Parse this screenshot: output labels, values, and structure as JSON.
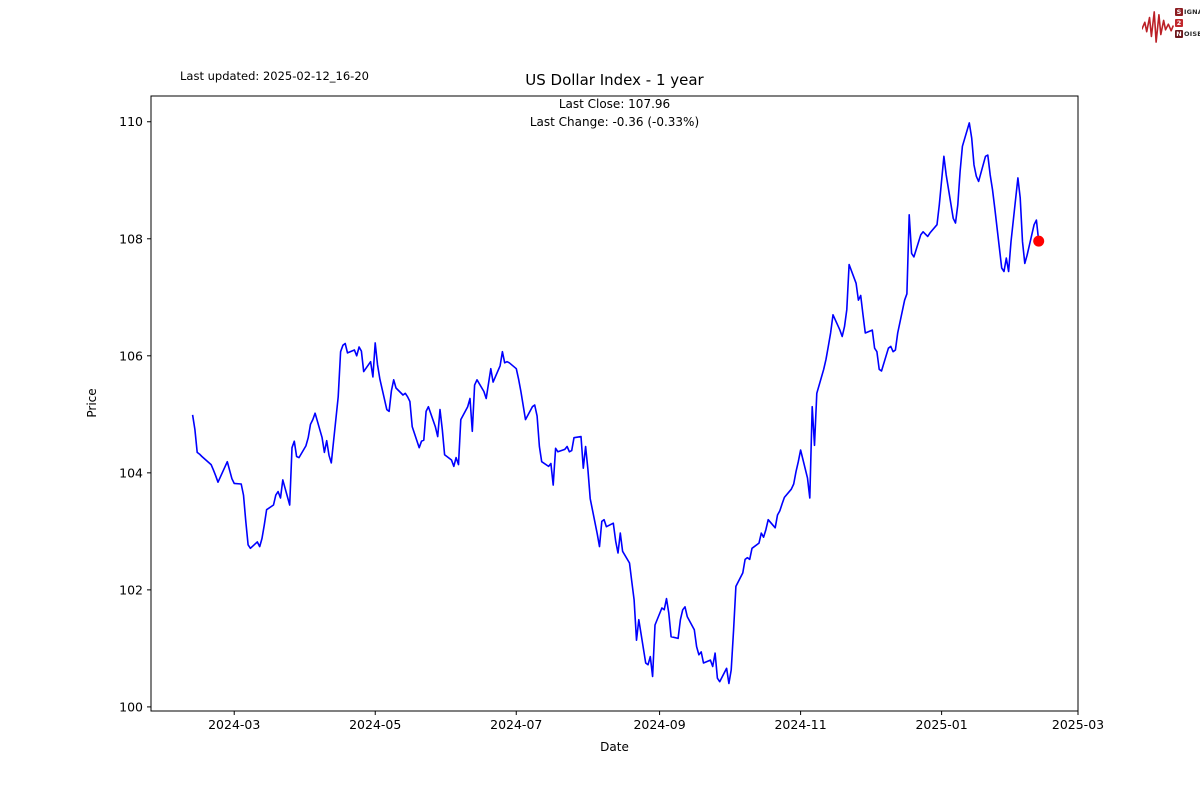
{
  "header": {
    "last_updated": "Last updated: 2025-02-12_16-20"
  },
  "logo": {
    "line1_initial": "S",
    "line1_rest": "IGNAL",
    "line2": "2",
    "line3_initial": "N",
    "line3_rest": "OISE",
    "box_colors": [
      "#8c1d22",
      "#c1272d",
      "#6d1a1e"
    ],
    "waveform_color": "#bb2026"
  },
  "chart_data": {
    "type": "line",
    "title": "US Dollar Index - 1 year",
    "subtitle_line1": "Last Close: 107.96",
    "subtitle_line2": "Last Change: -0.36 (-0.33%)",
    "xlabel": "Date",
    "ylabel": "Price",
    "last_close": 107.96,
    "last_change": -0.36,
    "last_change_pct": "-0.33%",
    "line_color": "#0000ff",
    "marker_color": "#ff0000",
    "grid": false,
    "legend": "none",
    "xlim": [
      "2024-01-25",
      "2025-03-01"
    ],
    "ylim": [
      99.93,
      110.44
    ],
    "y_ticks": [
      100,
      102,
      104,
      106,
      108,
      110
    ],
    "x_ticks": [
      {
        "date": "2024-03-01",
        "label": "2024-03"
      },
      {
        "date": "2024-05-01",
        "label": "2024-05"
      },
      {
        "date": "2024-07-01",
        "label": "2024-07"
      },
      {
        "date": "2024-09-01",
        "label": "2024-09"
      },
      {
        "date": "2024-11-01",
        "label": "2024-11"
      },
      {
        "date": "2025-01-01",
        "label": "2025-01"
      },
      {
        "date": "2025-03-01",
        "label": "2025-03"
      }
    ],
    "points": [
      [
        "2024-02-12",
        104.99
      ],
      [
        "2024-02-13",
        104.74
      ],
      [
        "2024-02-14",
        104.35
      ],
      [
        "2024-02-15",
        104.32
      ],
      [
        "2024-02-16",
        104.28
      ],
      [
        "2024-02-20",
        104.14
      ],
      [
        "2024-02-21",
        104.05
      ],
      [
        "2024-02-22",
        103.95
      ],
      [
        "2024-02-23",
        103.84
      ],
      [
        "2024-02-27",
        104.19
      ],
      [
        "2024-02-29",
        103.9
      ],
      [
        "2024-03-01",
        103.82
      ],
      [
        "2024-03-04",
        103.81
      ],
      [
        "2024-03-05",
        103.62
      ],
      [
        "2024-03-06",
        103.17
      ],
      [
        "2024-03-07",
        102.77
      ],
      [
        "2024-03-08",
        102.71
      ],
      [
        "2024-03-11",
        102.82
      ],
      [
        "2024-03-12",
        102.74
      ],
      [
        "2024-03-13",
        102.88
      ],
      [
        "2024-03-14",
        103.11
      ],
      [
        "2024-03-15",
        103.37
      ],
      [
        "2024-03-18",
        103.45
      ],
      [
        "2024-03-19",
        103.62
      ],
      [
        "2024-03-20",
        103.68
      ],
      [
        "2024-03-21",
        103.57
      ],
      [
        "2024-03-22",
        103.88
      ],
      [
        "2024-03-25",
        103.45
      ],
      [
        "2024-03-26",
        104.43
      ],
      [
        "2024-03-27",
        104.54
      ],
      [
        "2024-03-28",
        104.28
      ],
      [
        "2024-03-29",
        104.26
      ],
      [
        "2024-04-01",
        104.46
      ],
      [
        "2024-04-02",
        104.6
      ],
      [
        "2024-04-03",
        104.83
      ],
      [
        "2024-04-04",
        104.91
      ],
      [
        "2024-04-05",
        105.02
      ],
      [
        "2024-04-08",
        104.6
      ],
      [
        "2024-04-09",
        104.35
      ],
      [
        "2024-04-10",
        104.55
      ],
      [
        "2024-04-11",
        104.3
      ],
      [
        "2024-04-12",
        104.17
      ],
      [
        "2024-04-15",
        105.3
      ],
      [
        "2024-04-16",
        106.07
      ],
      [
        "2024-04-17",
        106.18
      ],
      [
        "2024-04-18",
        106.21
      ],
      [
        "2024-04-19",
        106.05
      ],
      [
        "2024-04-22",
        106.1
      ],
      [
        "2024-04-23",
        106.0
      ],
      [
        "2024-04-24",
        106.15
      ],
      [
        "2024-04-25",
        106.08
      ],
      [
        "2024-04-26",
        105.73
      ],
      [
        "2024-04-29",
        105.9
      ],
      [
        "2024-04-30",
        105.64
      ],
      [
        "2024-05-01",
        106.22
      ],
      [
        "2024-05-02",
        105.85
      ],
      [
        "2024-05-03",
        105.6
      ],
      [
        "2024-05-06",
        105.08
      ],
      [
        "2024-05-07",
        105.05
      ],
      [
        "2024-05-08",
        105.4
      ],
      [
        "2024-05-09",
        105.59
      ],
      [
        "2024-05-10",
        105.45
      ],
      [
        "2024-05-13",
        105.33
      ],
      [
        "2024-05-14",
        105.36
      ],
      [
        "2024-05-15",
        105.3
      ],
      [
        "2024-05-16",
        105.22
      ],
      [
        "2024-05-17",
        104.79
      ],
      [
        "2024-05-20",
        104.43
      ],
      [
        "2024-05-21",
        104.54
      ],
      [
        "2024-05-22",
        104.56
      ],
      [
        "2024-05-23",
        105.05
      ],
      [
        "2024-05-24",
        105.13
      ],
      [
        "2024-05-27",
        104.79
      ],
      [
        "2024-05-28",
        104.62
      ],
      [
        "2024-05-29",
        105.08
      ],
      [
        "2024-05-30",
        104.74
      ],
      [
        "2024-05-31",
        104.31
      ],
      [
        "2024-06-03",
        104.22
      ],
      [
        "2024-06-04",
        104.11
      ],
      [
        "2024-06-05",
        104.26
      ],
      [
        "2024-06-06",
        104.14
      ],
      [
        "2024-06-07",
        104.91
      ],
      [
        "2024-06-10",
        105.13
      ],
      [
        "2024-06-11",
        105.27
      ],
      [
        "2024-06-12",
        104.71
      ],
      [
        "2024-06-13",
        105.5
      ],
      [
        "2024-06-14",
        105.59
      ],
      [
        "2024-06-17",
        105.39
      ],
      [
        "2024-06-18",
        105.27
      ],
      [
        "2024-06-20",
        105.78
      ],
      [
        "2024-06-21",
        105.55
      ],
      [
        "2024-06-24",
        105.83
      ],
      [
        "2024-06-25",
        106.07
      ],
      [
        "2024-06-26",
        105.88
      ],
      [
        "2024-06-27",
        105.9
      ],
      [
        "2024-06-28",
        105.88
      ],
      [
        "2024-07-01",
        105.78
      ],
      [
        "2024-07-02",
        105.6
      ],
      [
        "2024-07-03",
        105.39
      ],
      [
        "2024-07-05",
        104.91
      ],
      [
        "2024-07-08",
        105.13
      ],
      [
        "2024-07-09",
        105.16
      ],
      [
        "2024-07-10",
        104.97
      ],
      [
        "2024-07-11",
        104.45
      ],
      [
        "2024-07-12",
        104.19
      ],
      [
        "2024-07-15",
        104.11
      ],
      [
        "2024-07-16",
        104.16
      ],
      [
        "2024-07-17",
        103.79
      ],
      [
        "2024-07-18",
        104.42
      ],
      [
        "2024-07-19",
        104.36
      ],
      [
        "2024-07-22",
        104.4
      ],
      [
        "2024-07-23",
        104.45
      ],
      [
        "2024-07-24",
        104.36
      ],
      [
        "2024-07-25",
        104.38
      ],
      [
        "2024-07-26",
        104.6
      ],
      [
        "2024-07-29",
        104.62
      ],
      [
        "2024-07-30",
        104.08
      ],
      [
        "2024-07-31",
        104.45
      ],
      [
        "2024-08-01",
        104.06
      ],
      [
        "2024-08-02",
        103.56
      ],
      [
        "2024-08-05",
        102.96
      ],
      [
        "2024-08-06",
        102.74
      ],
      [
        "2024-08-07",
        103.17
      ],
      [
        "2024-08-08",
        103.2
      ],
      [
        "2024-08-09",
        103.08
      ],
      [
        "2024-08-12",
        103.14
      ],
      [
        "2024-08-13",
        102.83
      ],
      [
        "2024-08-14",
        102.63
      ],
      [
        "2024-08-15",
        102.97
      ],
      [
        "2024-08-16",
        102.66
      ],
      [
        "2024-08-19",
        102.46
      ],
      [
        "2024-08-20",
        102.14
      ],
      [
        "2024-08-21",
        101.83
      ],
      [
        "2024-08-22",
        101.14
      ],
      [
        "2024-08-23",
        101.49
      ],
      [
        "2024-08-26",
        100.75
      ],
      [
        "2024-08-27",
        100.72
      ],
      [
        "2024-08-28",
        100.86
      ],
      [
        "2024-08-29",
        100.52
      ],
      [
        "2024-08-30",
        101.4
      ],
      [
        "2024-09-02",
        101.69
      ],
      [
        "2024-09-03",
        101.66
      ],
      [
        "2024-09-04",
        101.85
      ],
      [
        "2024-09-05",
        101.6
      ],
      [
        "2024-09-06",
        101.2
      ],
      [
        "2024-09-09",
        101.17
      ],
      [
        "2024-09-10",
        101.49
      ],
      [
        "2024-09-11",
        101.66
      ],
      [
        "2024-09-12",
        101.71
      ],
      [
        "2024-09-13",
        101.54
      ],
      [
        "2024-09-16",
        101.32
      ],
      [
        "2024-09-17",
        101.03
      ],
      [
        "2024-09-18",
        100.89
      ],
      [
        "2024-09-19",
        100.94
      ],
      [
        "2024-09-20",
        100.75
      ],
      [
        "2024-09-23",
        100.8
      ],
      [
        "2024-09-24",
        100.69
      ],
      [
        "2024-09-25",
        100.92
      ],
      [
        "2024-09-26",
        100.49
      ],
      [
        "2024-09-27",
        100.43
      ],
      [
        "2024-09-30",
        100.66
      ],
      [
        "2024-10-01",
        100.4
      ],
      [
        "2024-10-02",
        100.63
      ],
      [
        "2024-10-03",
        101.32
      ],
      [
        "2024-10-04",
        102.06
      ],
      [
        "2024-10-07",
        102.29
      ],
      [
        "2024-10-08",
        102.52
      ],
      [
        "2024-10-09",
        102.55
      ],
      [
        "2024-10-10",
        102.52
      ],
      [
        "2024-10-11",
        102.71
      ],
      [
        "2024-10-14",
        102.8
      ],
      [
        "2024-10-15",
        102.97
      ],
      [
        "2024-10-16",
        102.9
      ],
      [
        "2024-10-17",
        103.03
      ],
      [
        "2024-10-18",
        103.2
      ],
      [
        "2024-10-21",
        103.06
      ],
      [
        "2024-10-22",
        103.28
      ],
      [
        "2024-10-23",
        103.35
      ],
      [
        "2024-10-24",
        103.47
      ],
      [
        "2024-10-25",
        103.58
      ],
      [
        "2024-10-28",
        103.72
      ],
      [
        "2024-10-29",
        103.81
      ],
      [
        "2024-10-30",
        104.02
      ],
      [
        "2024-10-31",
        104.19
      ],
      [
        "2024-11-01",
        104.39
      ],
      [
        "2024-11-04",
        103.91
      ],
      [
        "2024-11-05",
        103.57
      ],
      [
        "2024-11-06",
        105.13
      ],
      [
        "2024-11-07",
        104.47
      ],
      [
        "2024-11-08",
        105.36
      ],
      [
        "2024-11-11",
        105.77
      ],
      [
        "2024-11-12",
        105.94
      ],
      [
        "2024-11-13",
        106.16
      ],
      [
        "2024-11-14",
        106.39
      ],
      [
        "2024-11-15",
        106.7
      ],
      [
        "2024-11-18",
        106.44
      ],
      [
        "2024-11-19",
        106.33
      ],
      [
        "2024-11-20",
        106.5
      ],
      [
        "2024-11-21",
        106.79
      ],
      [
        "2024-11-22",
        107.56
      ],
      [
        "2024-11-25",
        107.24
      ],
      [
        "2024-11-26",
        106.95
      ],
      [
        "2024-11-27",
        107.03
      ],
      [
        "2024-11-28",
        106.7
      ],
      [
        "2024-11-29",
        106.39
      ],
      [
        "2024-12-02",
        106.44
      ],
      [
        "2024-12-03",
        106.13
      ],
      [
        "2024-12-04",
        106.07
      ],
      [
        "2024-12-05",
        105.77
      ],
      [
        "2024-12-06",
        105.74
      ],
      [
        "2024-12-09",
        106.13
      ],
      [
        "2024-12-10",
        106.16
      ],
      [
        "2024-12-11",
        106.07
      ],
      [
        "2024-12-12",
        106.1
      ],
      [
        "2024-12-13",
        106.39
      ],
      [
        "2024-12-16",
        106.95
      ],
      [
        "2024-12-17",
        107.06
      ],
      [
        "2024-12-18",
        108.41
      ],
      [
        "2024-12-19",
        107.75
      ],
      [
        "2024-12-20",
        107.69
      ],
      [
        "2024-12-23",
        108.07
      ],
      [
        "2024-12-24",
        108.12
      ],
      [
        "2024-12-26",
        108.04
      ],
      [
        "2024-12-27",
        108.1
      ],
      [
        "2024-12-30",
        108.24
      ],
      [
        "2024-12-31",
        108.58
      ],
      [
        "2025-01-02",
        109.41
      ],
      [
        "2025-01-03",
        109.09
      ],
      [
        "2025-01-06",
        108.35
      ],
      [
        "2025-01-07",
        108.27
      ],
      [
        "2025-01-08",
        108.58
      ],
      [
        "2025-01-09",
        109.15
      ],
      [
        "2025-01-10",
        109.58
      ],
      [
        "2025-01-13",
        109.98
      ],
      [
        "2025-01-14",
        109.72
      ],
      [
        "2025-01-15",
        109.26
      ],
      [
        "2025-01-16",
        109.07
      ],
      [
        "2025-01-17",
        108.98
      ],
      [
        "2025-01-20",
        109.41
      ],
      [
        "2025-01-21",
        109.43
      ],
      [
        "2025-01-22",
        109.09
      ],
      [
        "2025-01-23",
        108.84
      ],
      [
        "2025-01-24",
        108.52
      ],
      [
        "2025-01-27",
        107.5
      ],
      [
        "2025-01-28",
        107.44
      ],
      [
        "2025-01-29",
        107.67
      ],
      [
        "2025-01-30",
        107.44
      ],
      [
        "2025-01-31",
        107.95
      ],
      [
        "2025-02-03",
        109.04
      ],
      [
        "2025-02-04",
        108.7
      ],
      [
        "2025-02-05",
        107.95
      ],
      [
        "2025-02-06",
        107.58
      ],
      [
        "2025-02-07",
        107.72
      ],
      [
        "2025-02-10",
        108.24
      ],
      [
        "2025-02-11",
        108.32
      ],
      [
        "2025-02-12",
        107.96
      ]
    ]
  }
}
